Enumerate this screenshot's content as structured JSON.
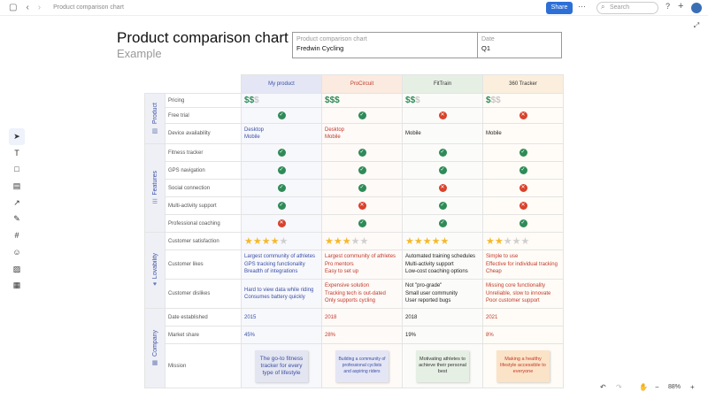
{
  "topbar": {
    "breadcrumb": "Product comparison chart",
    "share_label": "Share",
    "search_placeholder": "Search"
  },
  "header": {
    "title": "Product comparison chart",
    "subtitle": "Example"
  },
  "infobox": {
    "name_label": "Product comparison chart",
    "name_value": "Fredwin Cycling",
    "date_label": "Date",
    "date_value": "Q1"
  },
  "products": [
    "My product",
    "ProCircuit",
    "FitTrain",
    "360 Tracker"
  ],
  "sections": {
    "product": "Product",
    "features": "Features",
    "lovability": "Lovability",
    "company": "Company"
  },
  "rows": {
    "pricing": {
      "label": "Pricing",
      "dollars": [
        2,
        3,
        2,
        1
      ],
      "max_dollars": 3
    },
    "free_trial": {
      "label": "Free trial",
      "values": [
        true,
        true,
        false,
        false
      ]
    },
    "device": {
      "label": "Device availability",
      "values": [
        [
          "Desktop",
          "Mobile"
        ],
        [
          "Desktop",
          "Mobile"
        ],
        [
          "Mobile"
        ],
        [
          "Mobile"
        ]
      ]
    },
    "fitness": {
      "label": "Fitness tracker",
      "values": [
        true,
        true,
        true,
        true
      ]
    },
    "gps": {
      "label": "GPS navigation",
      "values": [
        true,
        true,
        true,
        true
      ]
    },
    "social": {
      "label": "Social connection",
      "values": [
        true,
        true,
        false,
        false
      ]
    },
    "multi": {
      "label": "Multi-activity support",
      "values": [
        true,
        false,
        true,
        false
      ]
    },
    "coaching": {
      "label": "Professional coaching",
      "values": [
        false,
        true,
        true,
        true
      ]
    },
    "satisfaction": {
      "label": "Customer satisfaction",
      "stars": [
        4,
        3,
        5,
        2
      ],
      "max_stars": 5
    },
    "likes": {
      "label": "Customer likes",
      "values": [
        [
          "Largest community of athletes",
          "GPS tracking functionality",
          "Breadth of integrations"
        ],
        [
          "Largest community of athletes",
          "Pro mentors",
          "Easy to set up"
        ],
        [
          "Automated training schedules",
          "Multi-activity support",
          "Low-cost coaching options"
        ],
        [
          "Simple to use",
          "Effective for individual tracking",
          "Cheap"
        ]
      ]
    },
    "dislikes": {
      "label": "Customer dislikes",
      "values": [
        [
          "Hard to view data while riding",
          "Consumes battery quickly"
        ],
        [
          "Expensive solution",
          "Tracking tech is out-dated",
          "Only supports cycling"
        ],
        [
          "Not \"pro-grade\"",
          "Small user community",
          "User reported bugs"
        ],
        [
          "Missing core functionality",
          "Unreliable, slow to innovate",
          "Poor customer support"
        ]
      ]
    },
    "established": {
      "label": "Date established",
      "values": [
        "2015",
        "2018",
        "2018",
        "2021"
      ]
    },
    "share": {
      "label": "Market share",
      "values": [
        "45%",
        "28%",
        "19%",
        "8%"
      ]
    },
    "mission": {
      "label": "Mission",
      "values": [
        "The go-to fitness tracker for every type of lifestyle",
        "Building a community of professional cyclists and aspiring riders",
        "Motivating athletes to achieve their personal best",
        "Making a healthy lifestyle accessible to everyone"
      ]
    }
  },
  "footer": {
    "zoom": "88%"
  }
}
